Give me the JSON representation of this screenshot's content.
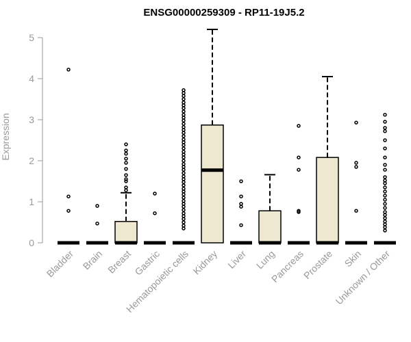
{
  "chart_data": {
    "type": "box",
    "title": "ENSG00000259309 - RP11-19J5.2",
    "ylabel": "Expression",
    "xlabel": "",
    "ylim": [
      0,
      5.2
    ],
    "yticks": [
      0,
      1,
      2,
      3,
      4,
      5
    ],
    "box_fill": "#efe8d0",
    "outline_color": "#000000",
    "axis_color": "#999999",
    "categories": [
      "Bladder",
      "Brain",
      "Breast",
      "Gastric",
      "Hematopoietic cells",
      "Kidney",
      "Liver",
      "Lung",
      "Pancreas",
      "Prostate",
      "Skin",
      "Unknown / Other"
    ],
    "boxes": [
      {
        "category": "Bladder",
        "q1": 0,
        "median": 0,
        "q3": 0,
        "whisker_low": 0,
        "whisker_high": 0,
        "outliers": [
          0.78,
          1.13,
          4.22
        ]
      },
      {
        "category": "Brain",
        "q1": 0,
        "median": 0,
        "q3": 0,
        "whisker_low": 0,
        "whisker_high": 0,
        "outliers": [
          0.47,
          0.9
        ]
      },
      {
        "category": "Breast",
        "q1": 0,
        "median": 0,
        "q3": 0.52,
        "whisker_low": 0,
        "whisker_high": 1.22,
        "outliers": [
          1.28,
          1.35,
          1.5,
          1.55,
          1.65,
          1.8,
          1.95,
          2.05,
          2.17,
          2.25,
          2.4
        ]
      },
      {
        "category": "Gastric",
        "q1": 0,
        "median": 0,
        "q3": 0,
        "whisker_low": 0,
        "whisker_high": 0,
        "outliers": [
          0.72,
          1.2
        ]
      },
      {
        "category": "Hematopoietic cells",
        "q1": 0,
        "median": 0,
        "q3": 0,
        "whisker_low": 0,
        "whisker_high": 0,
        "outliers": [
          0.35,
          0.42,
          0.5,
          0.58,
          0.65,
          0.72,
          0.8,
          0.88,
          0.95,
          1.02,
          1.1,
          1.18,
          1.25,
          1.32,
          1.4,
          1.48,
          1.55,
          1.62,
          1.7,
          1.78,
          1.85,
          1.92,
          2.0,
          2.08,
          2.15,
          2.22,
          2.3,
          2.38,
          2.45,
          2.52,
          2.6,
          2.68,
          2.75,
          2.82,
          2.9,
          2.98,
          3.05,
          3.12,
          3.2,
          3.28,
          3.35,
          3.42,
          3.5,
          3.58,
          3.65,
          3.72
        ]
      },
      {
        "category": "Kidney",
        "q1": 0,
        "median": 1.77,
        "q3": 2.87,
        "whisker_low": 0,
        "whisker_high": 5.2,
        "outliers": []
      },
      {
        "category": "Liver",
        "q1": 0,
        "median": 0,
        "q3": 0,
        "whisker_low": 0,
        "whisker_high": 0,
        "outliers": [
          0.43,
          0.88,
          0.95,
          1.13,
          1.5
        ]
      },
      {
        "category": "Lung",
        "q1": 0,
        "median": 0,
        "q3": 0.78,
        "whisker_low": 0,
        "whisker_high": 1.66,
        "outliers": []
      },
      {
        "category": "Pancreas",
        "q1": 0,
        "median": 0,
        "q3": 0,
        "whisker_low": 0,
        "whisker_high": 0,
        "outliers": [
          0.75,
          0.78,
          1.78,
          2.08,
          2.85
        ]
      },
      {
        "category": "Prostate",
        "q1": 0,
        "median": 0,
        "q3": 2.08,
        "whisker_low": 0,
        "whisker_high": 4.05,
        "outliers": []
      },
      {
        "category": "Skin",
        "q1": 0,
        "median": 0,
        "q3": 0,
        "whisker_low": 0,
        "whisker_high": 0,
        "outliers": [
          0.78,
          1.85,
          1.95,
          2.93
        ]
      },
      {
        "category": "Unknown / Other",
        "q1": 0,
        "median": 0,
        "q3": 0,
        "whisker_low": 0,
        "whisker_high": 0,
        "outliers": [
          0.3,
          0.38,
          0.45,
          0.52,
          0.6,
          0.68,
          0.75,
          0.85,
          0.95,
          1.05,
          1.15,
          1.25,
          1.35,
          1.45,
          1.52,
          1.6,
          1.78,
          1.9,
          2.08,
          2.3,
          2.5,
          2.72,
          2.8,
          2.95,
          3.12
        ]
      }
    ]
  }
}
